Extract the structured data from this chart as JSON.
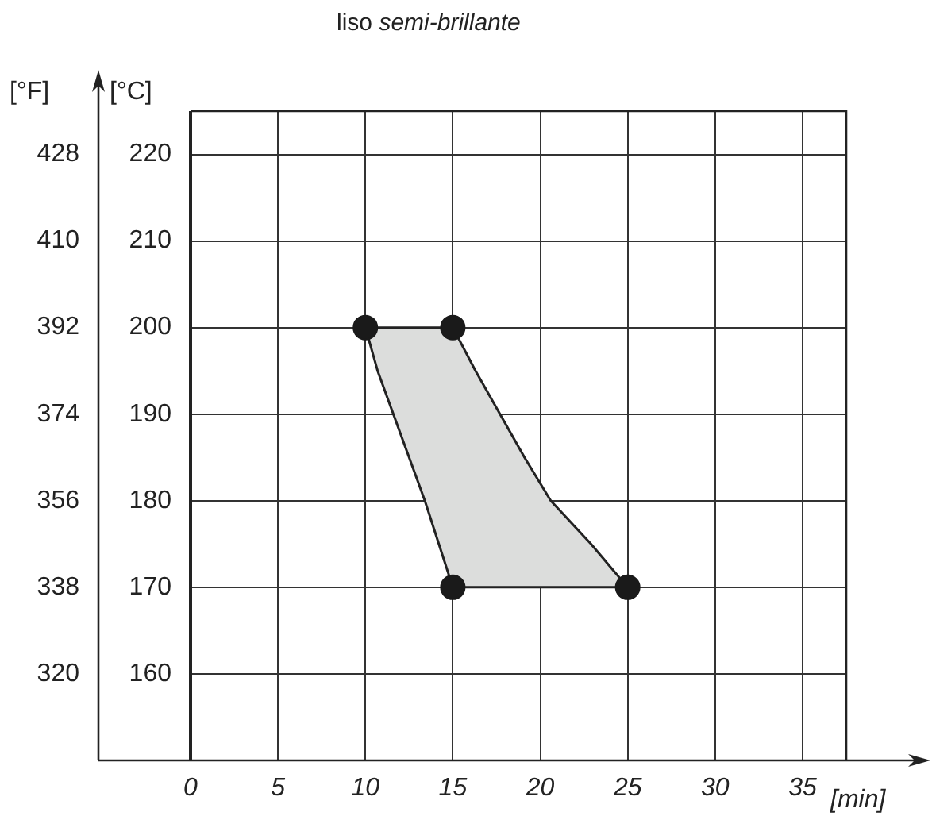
{
  "chart_data": {
    "type": "area",
    "title": "liso semi-brillante",
    "xlabel": "[min]",
    "ylabel": "[°C]",
    "y2label": "[°F]",
    "xlim": [
      0,
      37.5
    ],
    "xticks": [
      0,
      5,
      10,
      15,
      20,
      25,
      30,
      35
    ],
    "ylim": [
      150,
      225
    ],
    "yticks": [
      160,
      170,
      180,
      190,
      200,
      210,
      220
    ],
    "y2lim": [
      302,
      437
    ],
    "y2ticks": [
      320,
      338,
      356,
      374,
      392,
      410,
      428
    ],
    "grid": true,
    "legend": false,
    "series": [
      {
        "color": "#dcdddc",
        "x": [
          10,
          15,
          16.3,
          17.7,
          19.1,
          20.6,
          22.9,
          25,
          15,
          14.2,
          13.4,
          12.5,
          11.6,
          10.7,
          10
        ],
        "values": [
          200,
          200,
          195,
          190,
          185,
          180,
          175,
          170,
          170,
          175,
          180,
          185,
          190,
          195,
          200
        ]
      },
      {
        "type": "scatter",
        "color": "#1a1a1a",
        "marker": "circle",
        "x": [
          10,
          15,
          15,
          25
        ],
        "values": [
          200,
          200,
          170,
          170
        ]
      }
    ]
  }
}
